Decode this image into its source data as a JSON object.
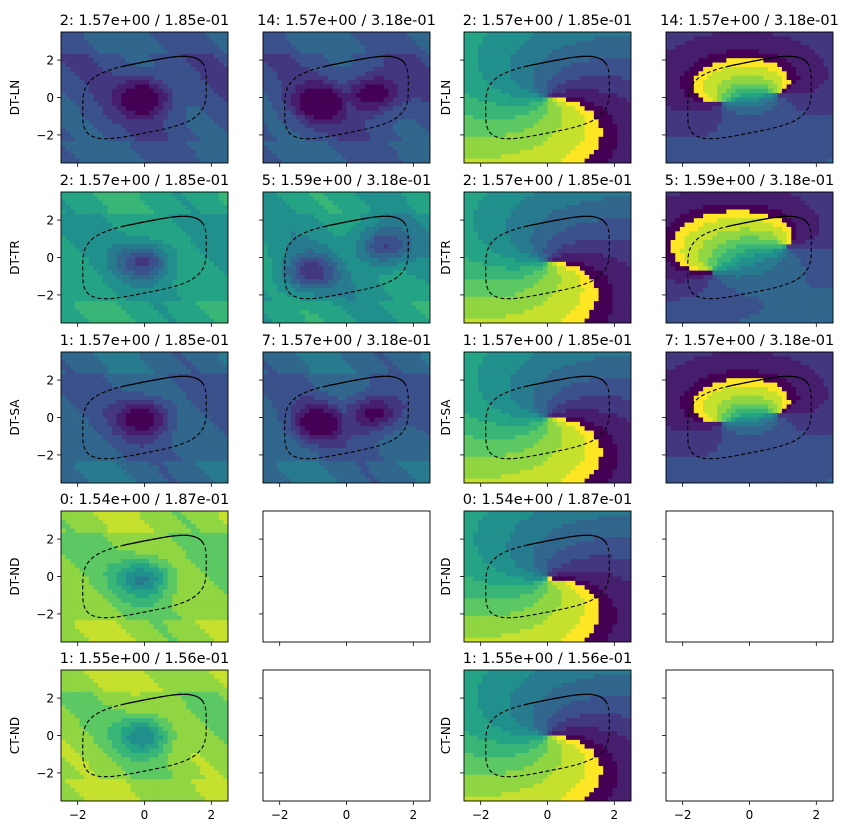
{
  "figure": {
    "rows": [
      "DT-LN",
      "DT-TR",
      "DT-SA",
      "DT-ND",
      "CT-ND"
    ],
    "columns": 4
  },
  "chart_data": {
    "type": "heatmap",
    "layout": "grid of subplots, 5 rows x 4 columns, filled contour maps with dashed closed curve overlay",
    "x_ticks": [
      -2,
      0,
      2
    ],
    "y_ticks": [
      2,
      0,
      -2
    ],
    "xlim": [
      -2.5,
      2.5
    ],
    "ylim": [
      -3.5,
      3.5
    ],
    "colormap": "viridis",
    "panels": [
      {
        "row": 0,
        "col": 0,
        "title": "2: 1.57e+00 / 1.85e-01",
        "ylabel": "DT-LN",
        "kind": "magnitude",
        "level": 0.25,
        "minima": [
          [
            0,
            0
          ]
        ],
        "show_xticks": false,
        "show_yticks": true
      },
      {
        "row": 0,
        "col": 1,
        "title": "14: 1.57e+00 / 3.18e-01",
        "ylabel": "",
        "kind": "magnitude",
        "level": 0.25,
        "minima": [
          [
            -0.8,
            -0.3
          ],
          [
            0.8,
            0.2
          ]
        ],
        "show_xticks": false,
        "show_yticks": false
      },
      {
        "row": 0,
        "col": 2,
        "title": "2: 1.57e+00 / 1.85e-01",
        "ylabel": "DT-LN",
        "kind": "phase",
        "level": 0.5,
        "minima": [
          [
            0,
            0
          ]
        ],
        "show_xticks": false,
        "show_yticks": false
      },
      {
        "row": 0,
        "col": 3,
        "title": "14: 1.57e+00 / 3.18e-01",
        "ylabel": "",
        "kind": "phase",
        "level": 0.5,
        "minima": [
          [
            -0.8,
            -0.3
          ],
          [
            0.8,
            0.2
          ]
        ],
        "show_xticks": false,
        "show_yticks": false
      },
      {
        "row": 1,
        "col": 0,
        "title": "2: 1.57e+00 / 1.85e-01",
        "ylabel": "DT-TR",
        "kind": "magnitude",
        "level": 0.55,
        "minima": [
          [
            0,
            -0.2
          ]
        ],
        "show_xticks": false,
        "show_yticks": true
      },
      {
        "row": 1,
        "col": 1,
        "title": "5: 1.59e+00 / 3.18e-01",
        "ylabel": "",
        "kind": "magnitude",
        "level": 0.52,
        "minima": [
          [
            -1.1,
            -0.8
          ],
          [
            1.1,
            0.6
          ]
        ],
        "show_xticks": false,
        "show_yticks": false
      },
      {
        "row": 1,
        "col": 2,
        "title": "2: 1.57e+00 / 1.85e-01",
        "ylabel": "DT-TR",
        "kind": "phase",
        "level": 0.5,
        "minima": [
          [
            0,
            -0.2
          ]
        ],
        "show_xticks": false,
        "show_yticks": false
      },
      {
        "row": 1,
        "col": 3,
        "title": "5: 1.59e+00 / 3.18e-01",
        "ylabel": "",
        "kind": "phase",
        "level": 0.5,
        "minima": [
          [
            -1.1,
            -0.8
          ],
          [
            1.1,
            0.6
          ]
        ],
        "show_xticks": false,
        "show_yticks": false
      },
      {
        "row": 2,
        "col": 0,
        "title": "1: 1.57e+00 / 1.85e-01",
        "ylabel": "DT-SA",
        "kind": "magnitude",
        "level": 0.3,
        "minima": [
          [
            0,
            0
          ]
        ],
        "show_xticks": false,
        "show_yticks": true
      },
      {
        "row": 2,
        "col": 1,
        "title": "7: 1.57e+00 / 3.18e-01",
        "ylabel": "",
        "kind": "magnitude",
        "level": 0.3,
        "minima": [
          [
            -0.8,
            -0.3
          ],
          [
            0.8,
            0.2
          ]
        ],
        "show_xticks": false,
        "show_yticks": false
      },
      {
        "row": 2,
        "col": 2,
        "title": "1: 1.57e+00 / 1.85e-01",
        "ylabel": "DT-SA",
        "kind": "phase",
        "level": 0.5,
        "minima": [
          [
            0,
            0
          ]
        ],
        "show_xticks": false,
        "show_yticks": false
      },
      {
        "row": 2,
        "col": 3,
        "title": "7: 1.57e+00 / 3.18e-01",
        "ylabel": "",
        "kind": "phase",
        "level": 0.5,
        "minima": [
          [
            -0.8,
            -0.3
          ],
          [
            0.8,
            0.2
          ]
        ],
        "show_xticks": false,
        "show_yticks": false
      },
      {
        "row": 3,
        "col": 0,
        "title": "0: 1.54e+00 / 1.87e-01",
        "ylabel": "DT-ND",
        "kind": "magnitude",
        "level": 0.8,
        "minima": [
          [
            0,
            -0.1
          ]
        ],
        "show_xticks": false,
        "show_yticks": true
      },
      {
        "row": 3,
        "col": 1,
        "title": "",
        "ylabel": "",
        "kind": "empty",
        "show_xticks": false,
        "show_yticks": false
      },
      {
        "row": 3,
        "col": 2,
        "title": "0: 1.54e+00 / 1.87e-01",
        "ylabel": "DT-ND",
        "kind": "phase",
        "level": 0.5,
        "minima": [
          [
            0,
            -0.1
          ]
        ],
        "show_xticks": false,
        "show_yticks": false
      },
      {
        "row": 3,
        "col": 3,
        "title": "",
        "ylabel": "",
        "kind": "empty",
        "show_xticks": false,
        "show_yticks": false
      },
      {
        "row": 4,
        "col": 0,
        "title": "1: 1.55e+00 / 1.56e-01",
        "ylabel": "CT-ND",
        "kind": "magnitude",
        "level": 0.82,
        "minima": [
          [
            0,
            0
          ]
        ],
        "show_xticks": true,
        "show_yticks": true
      },
      {
        "row": 4,
        "col": 1,
        "title": "",
        "ylabel": "",
        "kind": "empty",
        "show_xticks": true,
        "show_yticks": false
      },
      {
        "row": 4,
        "col": 2,
        "title": "1: 1.55e+00 / 1.56e-01",
        "ylabel": "CT-ND",
        "kind": "phase",
        "level": 0.5,
        "minima": [
          [
            0,
            0
          ]
        ],
        "show_xticks": true,
        "show_yticks": false
      },
      {
        "row": 4,
        "col": 3,
        "title": "",
        "ylabel": "",
        "kind": "empty",
        "show_xticks": true,
        "show_yticks": false
      }
    ]
  }
}
